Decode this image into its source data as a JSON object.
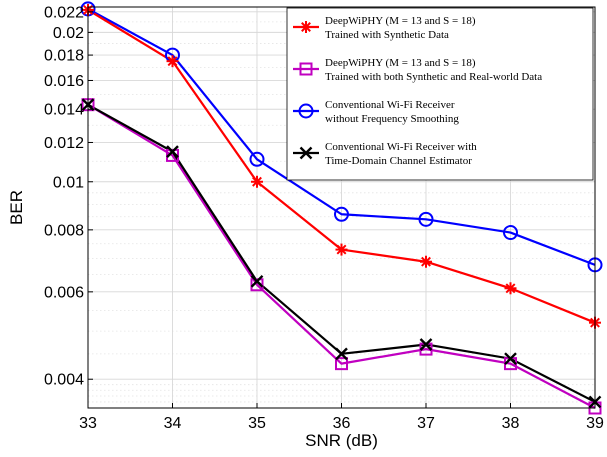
{
  "chart_data": {
    "type": "line",
    "xlabel": "SNR (dB)",
    "ylabel": "BER",
    "xlim": [
      33,
      39
    ],
    "ylim": [
      0.0035,
      0.0225
    ],
    "y_scale": "log",
    "grid": true,
    "legend_position": "top-right",
    "x": [
      33,
      34,
      35,
      36,
      37,
      38,
      39
    ],
    "x_ticks": [
      "33",
      "34",
      "35",
      "36",
      "37",
      "38",
      "39"
    ],
    "y_ticks": [
      {
        "value": 0.022,
        "label": "0.022"
      },
      {
        "value": 0.02,
        "label": "0.02"
      },
      {
        "value": 0.018,
        "label": "0.018"
      },
      {
        "value": 0.016,
        "label": "0.016"
      },
      {
        "value": 0.014,
        "label": "0.014"
      },
      {
        "value": 0.012,
        "label": "0.012"
      },
      {
        "value": 0.01,
        "label": "0.01"
      },
      {
        "value": 0.008,
        "label": "0.008"
      },
      {
        "value": 0.006,
        "label": "0.006"
      },
      {
        "value": 0.004,
        "label": "0.004"
      }
    ],
    "series": [
      {
        "name_line1": "DeepWiPHY (M = 13 and S = 18)",
        "name_line2": "Trained with Synthetic Data",
        "color": "#ff0000",
        "marker": "asterisk",
        "values": [
          0.0222,
          0.0175,
          0.01,
          0.0073,
          0.0069,
          0.0061,
          0.0052
        ]
      },
      {
        "name_line1": "DeepWiPHY (M = 13 and S = 18)",
        "name_line2": "Trained with both Synthetic and Real-world Data",
        "color": "#c000c0",
        "marker": "square",
        "values": [
          0.0143,
          0.0113,
          0.0062,
          0.0043,
          0.0046,
          0.0043,
          0.0035
        ]
      },
      {
        "name_line1": "Conventional Wi-Fi Receiver",
        "name_line2": "without Frequency Smoothing",
        "color": "#0000ff",
        "marker": "circle",
        "values": [
          0.0223,
          0.018,
          0.0111,
          0.0086,
          0.0084,
          0.0079,
          0.0068
        ]
      },
      {
        "name_line1": "Conventional Wi-Fi Receiver with",
        "name_line2": "Time-Domain Channel Estimator",
        "color": "#000000",
        "marker": "x",
        "values": [
          0.0143,
          0.0115,
          0.0063,
          0.0045,
          0.0047,
          0.0044,
          0.0036
        ]
      }
    ]
  }
}
